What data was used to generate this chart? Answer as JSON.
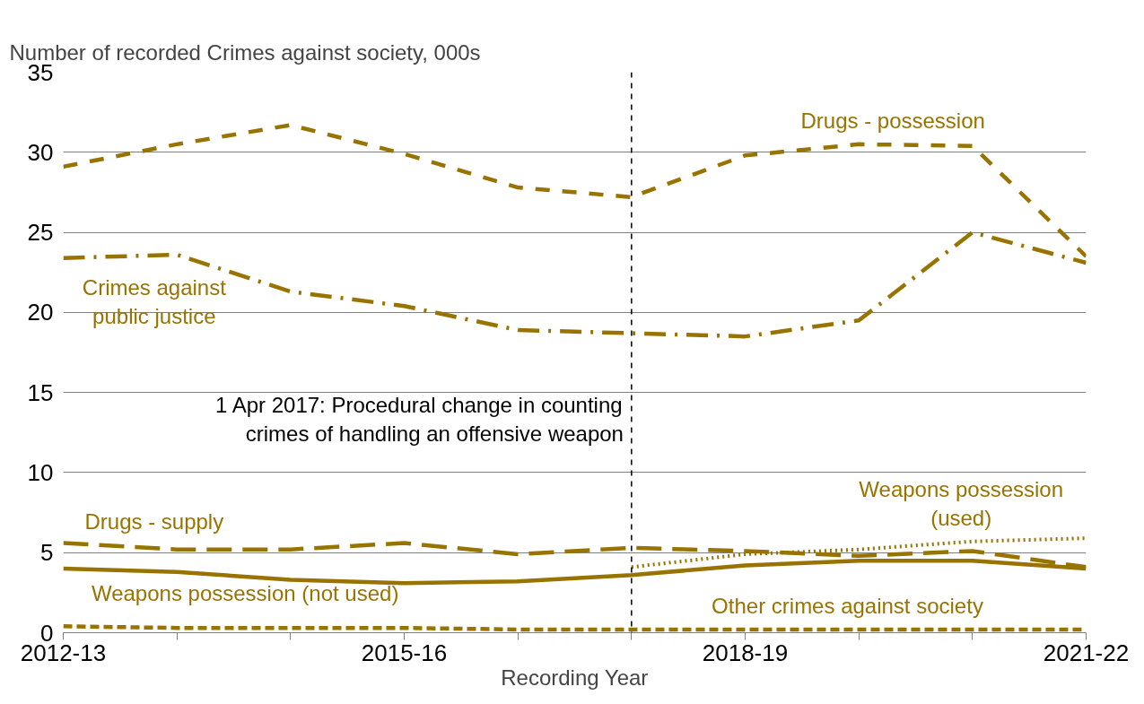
{
  "chart_data": {
    "type": "line",
    "ylabel": "Number of recorded Crimes against society, 000s",
    "xlabel": "Recording Year",
    "categories": [
      "2012-13",
      null,
      null,
      "2015-16",
      null,
      null,
      "2018-19",
      null,
      null,
      "2021-22"
    ],
    "ylim": [
      0,
      35
    ],
    "yticks": [
      0,
      5,
      10,
      15,
      20,
      25,
      30,
      35
    ],
    "grid": "y",
    "legend": false,
    "marker": "none",
    "annotations": [
      "1 Apr 2017: Procedural change in counting crimes of handling an offensive weapon"
    ],
    "series": [
      {
        "name": "Drugs - possession",
        "color": "#997300",
        "line_style": "dashed",
        "values": [
          29.1,
          30.5,
          31.7,
          29.9,
          27.8,
          27.2,
          29.8,
          30.5,
          30.4,
          23.5
        ]
      },
      {
        "name": "Crimes against public justice",
        "color": "#997300",
        "line_style": "dashdot",
        "values": [
          23.4,
          23.6,
          21.3,
          20.4,
          18.9,
          18.7,
          18.5,
          19.5,
          25.0,
          23.1
        ]
      },
      {
        "name": "Drugs - supply",
        "color": "#997300",
        "line_style": "dashed",
        "values": [
          5.6,
          5.2,
          5.2,
          5.6,
          4.9,
          5.3,
          5.1,
          4.8,
          5.1,
          4.1
        ]
      },
      {
        "name": "Weapons possession (not used)",
        "color": "#997300",
        "line_style": "solid",
        "values": [
          4.0,
          3.8,
          3.3,
          3.1,
          3.2,
          3.6,
          4.2,
          4.5,
          4.5,
          4.0
        ]
      },
      {
        "name": "Weapons possession (used)",
        "color": "#997300",
        "line_style": "dotted",
        "values": [
          null,
          null,
          null,
          null,
          null,
          4.1,
          4.9,
          5.2,
          5.7,
          5.9
        ]
      },
      {
        "name": "Other crimes against society",
        "color": "#997300",
        "line_style": "dashed",
        "values": [
          0.4,
          0.3,
          0.3,
          0.3,
          0.2,
          0.2,
          0.2,
          0.2,
          0.2,
          0.2
        ]
      }
    ]
  }
}
